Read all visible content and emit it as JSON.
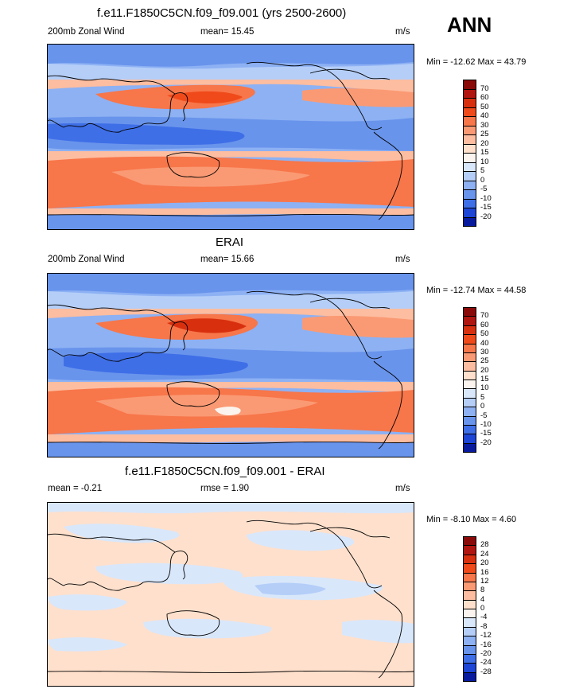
{
  "header": {
    "title": "f.e11.F1850C5CN.f09_f09.001 (yrs 2500-2600)",
    "season": "ANN"
  },
  "panels": [
    {
      "title": "",
      "left_label": "200mb Zonal Wind",
      "mid_label": "mean=  15.45",
      "units": "m/s",
      "minmax": "Min = -12.62 Max =  43.79",
      "colorbar": {
        "labels": [
          "70",
          "60",
          "50",
          "40",
          "30",
          "25",
          "20",
          "15",
          "10",
          "5",
          "0",
          "-5",
          "-10",
          "-15",
          "-20"
        ],
        "colors": [
          "#8a0a0a",
          "#b1150f",
          "#d8300f",
          "#f04a1a",
          "#f7764a",
          "#fa9a74",
          "#fdbda0",
          "#fee0cc",
          "#fbf4ee",
          "#d9e7fb",
          "#b4cef8",
          "#8db1f3",
          "#6994ec",
          "#3f6fe7",
          "#1d45d6",
          "#081a9e"
        ]
      }
    },
    {
      "title": "ERAI",
      "left_label": "200mb Zonal Wind",
      "mid_label": "mean=  15.66",
      "units": "m/s",
      "minmax": "Min = -12.74 Max =  44.58",
      "colorbar": {
        "labels": [
          "70",
          "60",
          "50",
          "40",
          "30",
          "25",
          "20",
          "15",
          "10",
          "5",
          "0",
          "-5",
          "-10",
          "-15",
          "-20"
        ],
        "colors": [
          "#8a0a0a",
          "#b1150f",
          "#d8300f",
          "#f04a1a",
          "#f7764a",
          "#fa9a74",
          "#fdbda0",
          "#fee0cc",
          "#fbf4ee",
          "#d9e7fb",
          "#b4cef8",
          "#8db1f3",
          "#6994ec",
          "#3f6fe7",
          "#1d45d6",
          "#081a9e"
        ]
      }
    },
    {
      "title": "f.e11.F1850C5CN.f09_f09.001 - ERAI",
      "left_label": "mean =  -0.21",
      "mid_label": "rmse =   1.90",
      "units": "m/s",
      "minmax": "Min =  -8.10 Max =   4.60",
      "colorbar": {
        "labels": [
          "28",
          "24",
          "20",
          "16",
          "12",
          "8",
          "4",
          "0",
          "-4",
          "-8",
          "-12",
          "-16",
          "-20",
          "-24",
          "-28"
        ],
        "colors": [
          "#8a0a0a",
          "#b1150f",
          "#d8300f",
          "#f04a1a",
          "#f7764a",
          "#fa9a74",
          "#fdbda0",
          "#fee0cc",
          "#fbf4ee",
          "#d9e7fb",
          "#b4cef8",
          "#8db1f3",
          "#6994ec",
          "#3f6fe7",
          "#1d45d6",
          "#081a9e"
        ]
      }
    }
  ]
}
